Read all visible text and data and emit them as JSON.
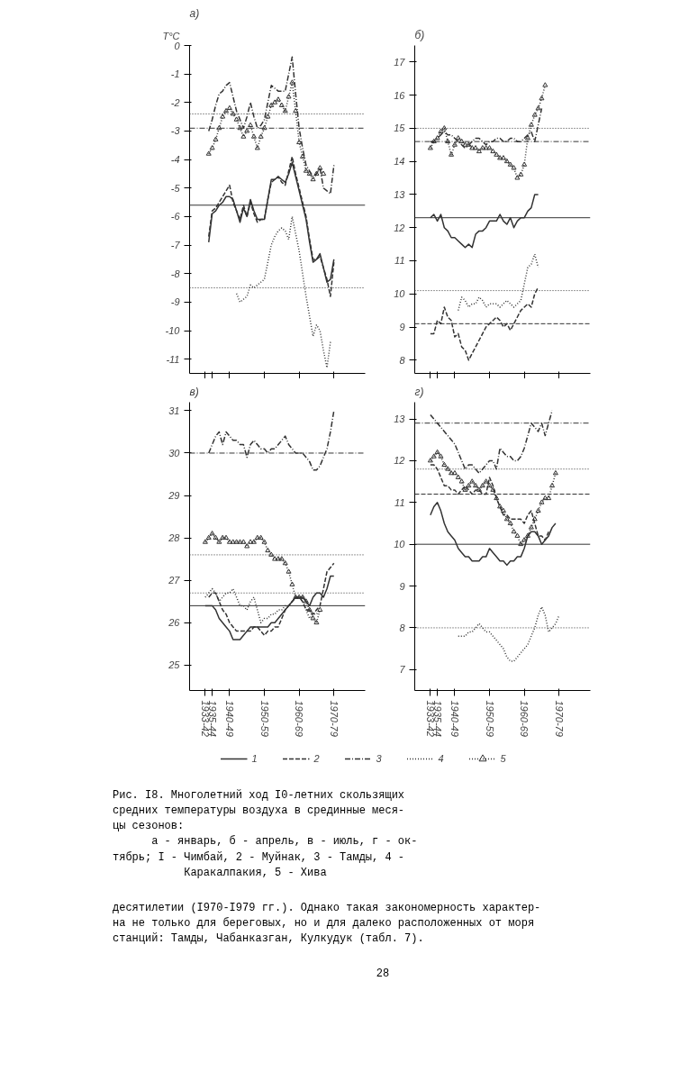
{
  "chart_data": [
    {
      "type": "line",
      "title": "а)",
      "ylabel": "T°C",
      "ylim": [
        -11.5,
        0
      ],
      "yticks": [
        0,
        -1,
        -2,
        -3,
        -4,
        -5,
        -6,
        -7,
        -8,
        -9,
        -10,
        -11
      ],
      "categories": [
        "1933-42",
        null,
        "1935-44",
        null,
        null,
        null,
        null,
        "1940-49",
        null,
        null,
        null,
        null,
        null,
        null,
        null,
        null,
        null,
        "1950-59",
        null,
        null,
        null,
        null,
        null,
        null,
        null,
        null,
        null,
        "1960-69",
        null,
        null,
        null,
        null,
        null,
        null,
        null,
        null,
        null,
        "1970-79"
      ],
      "tick_labels": "y",
      "grid": false,
      "legend": false,
      "series": [
        {
          "color": "#333333",
          "line_style": "solid",
          "values": [
            null,
            -6.9,
            -5.9,
            -5.8,
            -5.6,
            -5.5,
            -5.3,
            -5.3,
            -5.4,
            -5.8,
            -6.2,
            -5.7,
            -6.0,
            -5.4,
            -5.8,
            -6.1,
            -6.1,
            -6.1,
            -5.4,
            -4.7,
            -4.7,
            -4.6,
            -4.7,
            -4.8,
            -4.5,
            -4.1,
            -4.6,
            -5.1,
            -5.6,
            -6.1,
            -6.9,
            -7.6,
            -7.5,
            -7.3,
            -7.8,
            -8.3,
            -8.2,
            -7.5
          ]
        },
        {
          "color": "#333333",
          "line_style": "dashed",
          "values": [
            null,
            -6.7,
            -5.8,
            -5.7,
            -5.5,
            -5.3,
            -5.1,
            -4.9,
            -5.5,
            -5.8,
            -6.1,
            -5.6,
            -6.0,
            -5.5,
            -5.9,
            -6.2,
            -6.1,
            -6.1,
            -5.4,
            -4.8,
            -4.7,
            -4.6,
            -4.8,
            -4.9,
            -4.4,
            -3.9,
            -4.5,
            -5.0,
            -5.5,
            -6.0,
            -6.8,
            -7.5,
            -7.5,
            -7.4,
            -7.8,
            -8.2,
            -8.8,
            -7.6
          ]
        },
        {
          "color": "#333333",
          "line_style": "dashdot",
          "values": [
            null,
            -3.0,
            -2.6,
            -2.1,
            -1.7,
            -1.6,
            -1.4,
            -1.3,
            -1.8,
            -2.3,
            -2.6,
            -2.9,
            -2.5,
            -2.0,
            -2.5,
            -2.9,
            -2.8,
            -2.6,
            -2.0,
            -1.4,
            -1.5,
            -1.6,
            -1.6,
            -1.6,
            -1.0,
            -0.4,
            -1.7,
            -2.9,
            -3.6,
            -4.2,
            -4.4,
            -4.6,
            -4.5,
            -4.3,
            -5.0,
            -5.1,
            -5.2,
            -4.2
          ]
        },
        {
          "color": "#333333",
          "line_style": "dotted",
          "values": [
            null,
            null,
            null,
            null,
            null,
            null,
            null,
            null,
            null,
            -8.7,
            -9.0,
            -8.9,
            -8.8,
            -8.4,
            -8.5,
            -8.4,
            -8.3,
            -8.2,
            -7.6,
            -7.0,
            -6.7,
            -6.5,
            -6.4,
            -6.5,
            -6.8,
            -6.0,
            -6.6,
            -7.2,
            -8.0,
            -8.8,
            -9.5,
            -10.2,
            -9.8,
            -10.0,
            -10.7,
            -11.3,
            -10.4,
            null
          ]
        },
        {
          "color": "#333333",
          "line_style": "dotted",
          "marker": "triangle",
          "values": [
            null,
            -3.8,
            -3.6,
            -3.3,
            -2.9,
            -2.5,
            -2.3,
            -2.2,
            -2.4,
            -2.6,
            -2.9,
            -3.2,
            -3.0,
            -2.8,
            -3.2,
            -3.6,
            -3.2,
            -2.9,
            -2.5,
            -2.1,
            -2.0,
            -1.9,
            -2.1,
            -2.3,
            -1.8,
            -1.3,
            -2.3,
            -3.4,
            -3.9,
            -4.4,
            -4.5,
            -4.7,
            -4.5,
            -4.3,
            -4.5,
            null,
            null,
            null
          ]
        }
      ],
      "ref_lines": [
        {
          "axis": "y",
          "value": -2.4,
          "color": "#333333",
          "line_style": "dotted"
        },
        {
          "axis": "y",
          "value": -2.9,
          "color": "#333333",
          "line_style": "dashdot"
        },
        {
          "axis": "y",
          "value": -5.6,
          "color": "#333333",
          "line_style": "solid"
        },
        {
          "axis": "y",
          "value": -8.5,
          "color": "#333333",
          "line_style": "dotted"
        }
      ]
    },
    {
      "type": "line",
      "title": "б)",
      "ylim": [
        7.6,
        17.5
      ],
      "yticks": [
        8,
        9,
        10,
        11,
        12,
        13,
        14,
        15,
        16,
        17
      ],
      "categories": [
        "1933-42",
        null,
        "1935-44",
        null,
        null,
        null,
        null,
        "1940-49",
        null,
        null,
        null,
        null,
        null,
        null,
        null,
        null,
        null,
        "1950-59",
        null,
        null,
        null,
        null,
        null,
        null,
        null,
        null,
        null,
        "1960-69",
        null,
        null,
        null,
        null,
        null,
        null,
        null,
        null,
        null,
        "1970-79"
      ],
      "tick_labels": "y",
      "grid": false,
      "legend": false,
      "series": [
        {
          "color": "#333333",
          "line_style": "solid",
          "values": [
            12.3,
            12.4,
            12.2,
            12.4,
            12.0,
            11.9,
            11.7,
            11.7,
            11.6,
            11.5,
            11.4,
            11.5,
            11.4,
            11.8,
            11.9,
            11.9,
            12.0,
            12.2,
            12.2,
            12.2,
            12.4,
            12.2,
            12.1,
            12.3,
            12.0,
            12.2,
            12.3,
            12.3,
            12.5,
            12.6,
            13.0,
            13.0,
            null,
            null,
            null,
            null,
            null,
            null
          ]
        },
        {
          "color": "#333333",
          "line_style": "dashed",
          "values": [
            8.8,
            8.8,
            9.2,
            9.1,
            9.6,
            9.3,
            9.2,
            8.7,
            8.8,
            8.4,
            8.3,
            8.0,
            8.2,
            8.4,
            8.6,
            8.8,
            9.0,
            9.1,
            9.2,
            9.3,
            9.2,
            9.0,
            9.1,
            8.9,
            9.1,
            9.3,
            9.5,
            9.6,
            9.7,
            9.6,
            10.0,
            10.2,
            null,
            null,
            null,
            null,
            null,
            null
          ]
        },
        {
          "color": "#333333",
          "line_style": "dashdot",
          "values": [
            14.6,
            14.6,
            14.7,
            14.8,
            14.9,
            14.8,
            14.8,
            14.7,
            14.6,
            14.5,
            14.4,
            14.5,
            14.6,
            14.7,
            14.7,
            14.6,
            14.5,
            14.6,
            14.6,
            14.7,
            14.7,
            14.6,
            14.6,
            14.7,
            14.7,
            14.6,
            14.6,
            14.7,
            14.8,
            14.9,
            14.6,
            15.1,
            15.6,
            null,
            null,
            null,
            null,
            null
          ]
        },
        {
          "color": "#333333",
          "line_style": "dotted",
          "values": [
            null,
            null,
            null,
            null,
            null,
            null,
            null,
            null,
            9.5,
            9.9,
            9.8,
            9.6,
            9.7,
            9.7,
            9.9,
            9.8,
            9.6,
            9.7,
            9.7,
            9.7,
            9.6,
            9.7,
            9.8,
            9.7,
            9.6,
            9.7,
            9.8,
            10.3,
            10.8,
            10.9,
            11.2,
            10.8,
            null,
            null,
            null,
            null,
            null,
            null
          ]
        },
        {
          "color": "#333333",
          "line_style": "dotted",
          "marker": "triangle",
          "values": [
            14.4,
            14.6,
            14.7,
            14.9,
            15.0,
            14.6,
            14.2,
            14.5,
            14.7,
            14.6,
            14.5,
            14.5,
            14.4,
            14.4,
            14.3,
            14.4,
            14.4,
            14.4,
            14.3,
            14.2,
            14.1,
            14.1,
            14.0,
            13.9,
            13.8,
            13.5,
            13.6,
            13.9,
            14.7,
            15.1,
            15.4,
            15.6,
            15.9,
            16.3,
            null,
            null,
            null,
            null
          ]
        }
      ],
      "ref_lines": [
        {
          "axis": "y",
          "value": 15.0,
          "color": "#333333",
          "line_style": "dotted"
        },
        {
          "axis": "y",
          "value": 14.6,
          "color": "#333333",
          "line_style": "dashdot"
        },
        {
          "axis": "y",
          "value": 12.3,
          "color": "#333333",
          "line_style": "solid"
        },
        {
          "axis": "y",
          "value": 10.1,
          "color": "#333333",
          "line_style": "dotted"
        },
        {
          "axis": "y",
          "value": 9.1,
          "color": "#333333",
          "line_style": "dashed"
        }
      ]
    },
    {
      "type": "line",
      "title": "в)",
      "ylim": [
        24.4,
        31.2
      ],
      "yticks": [
        25,
        26,
        27,
        28,
        29,
        30,
        31
      ],
      "categories": [
        "1933-42",
        null,
        "1935-44",
        null,
        null,
        null,
        null,
        "1940-49",
        null,
        null,
        null,
        null,
        null,
        null,
        null,
        null,
        null,
        "1950-59",
        null,
        null,
        null,
        null,
        null,
        null,
        null,
        null,
        null,
        "1960-69",
        null,
        null,
        null,
        null,
        null,
        null,
        null,
        null,
        null,
        "1970-79"
      ],
      "grid": false,
      "legend": "bottom",
      "series": [
        {
          "name": "1",
          "color": "#333333",
          "line_style": "solid",
          "values": [
            26.4,
            26.4,
            26.4,
            26.3,
            26.1,
            26.0,
            25.9,
            25.8,
            25.6,
            25.6,
            25.6,
            25.7,
            25.8,
            25.9,
            25.9,
            25.9,
            25.9,
            25.9,
            25.9,
            26.0,
            26.0,
            26.1,
            26.2,
            26.3,
            26.4,
            26.5,
            26.6,
            26.6,
            26.6,
            26.5,
            26.4,
            26.6,
            26.7,
            26.7,
            26.6,
            26.8,
            27.1,
            27.1
          ]
        },
        {
          "name": "2",
          "color": "#333333",
          "line_style": "dashed",
          "values": [
            null,
            26.6,
            26.7,
            26.7,
            26.5,
            26.3,
            26.2,
            26.0,
            25.9,
            25.8,
            25.8,
            25.8,
            25.8,
            25.8,
            25.9,
            25.9,
            25.8,
            25.7,
            25.8,
            25.8,
            25.9,
            25.9,
            26.1,
            26.3,
            26.4,
            26.5,
            26.6,
            26.6,
            26.5,
            26.3,
            26.3,
            26.2,
            26.3,
            26.4,
            26.8,
            27.2,
            27.3,
            27.4
          ]
        },
        {
          "name": "3",
          "color": "#333333",
          "line_style": "dashdot",
          "values": [
            null,
            30.0,
            30.2,
            30.4,
            30.5,
            30.2,
            30.5,
            30.4,
            30.3,
            30.3,
            30.2,
            30.2,
            29.9,
            30.2,
            30.3,
            30.2,
            30.1,
            30.1,
            30.0,
            30.1,
            30.1,
            30.2,
            30.3,
            30.4,
            30.2,
            30.1,
            30.0,
            30.0,
            30.0,
            29.9,
            29.8,
            29.6,
            29.6,
            29.7,
            29.9,
            30.1,
            30.5,
            31.0
          ]
        },
        {
          "name": "4",
          "color": "#333333",
          "line_style": "dotted",
          "values": [
            26.6,
            26.7,
            26.8,
            26.7,
            26.5,
            26.6,
            26.7,
            26.7,
            26.8,
            26.6,
            26.4,
            26.4,
            26.3,
            26.5,
            26.6,
            26.3,
            26.0,
            26.1,
            26.1,
            26.2,
            26.2,
            26.3,
            26.3,
            26.4,
            26.4,
            26.5,
            26.6,
            26.6,
            26.5,
            26.3,
            26.1,
            26.2,
            26.2,
            26.3,
            null,
            null,
            null,
            null
          ]
        },
        {
          "name": "5",
          "color": "#333333",
          "line_style": "dotted",
          "marker": "triangle",
          "values": [
            27.9,
            28.0,
            28.1,
            28.0,
            27.9,
            28.0,
            28.0,
            27.9,
            27.9,
            27.9,
            27.9,
            27.9,
            27.8,
            27.9,
            27.9,
            28.0,
            28.0,
            27.9,
            27.7,
            27.6,
            27.5,
            27.5,
            27.5,
            27.4,
            27.2,
            26.9,
            26.6,
            26.6,
            26.6,
            26.5,
            26.3,
            26.1,
            26.0,
            26.3,
            null,
            null,
            null,
            null
          ]
        }
      ],
      "ref_lines": [
        {
          "axis": "y",
          "value": 30.0,
          "color": "#333333",
          "line_style": "dashdot"
        },
        {
          "axis": "y",
          "value": 27.6,
          "color": "#333333",
          "line_style": "dotted"
        },
        {
          "axis": "y",
          "value": 26.7,
          "color": "#333333",
          "line_style": "dotted"
        },
        {
          "axis": "y",
          "value": 26.4,
          "color": "#333333",
          "line_style": "solid"
        }
      ]
    },
    {
      "type": "line",
      "title": "г)",
      "ylim": [
        6.5,
        13.4
      ],
      "yticks": [
        7,
        8,
        9,
        10,
        11,
        12,
        13
      ],
      "categories": [
        "1933-42",
        null,
        "1935-44",
        null,
        null,
        null,
        null,
        "1940-49",
        null,
        null,
        null,
        null,
        null,
        null,
        null,
        null,
        null,
        "1950-59",
        null,
        null,
        null,
        null,
        null,
        null,
        null,
        null,
        null,
        "1960-69",
        null,
        null,
        null,
        null,
        null,
        null,
        null,
        null,
        null,
        "1970-79"
      ],
      "grid": false,
      "legend": false,
      "series": [
        {
          "color": "#333333",
          "line_style": "solid",
          "values": [
            10.7,
            10.9,
            11.0,
            10.8,
            10.5,
            10.3,
            10.2,
            10.1,
            9.9,
            9.8,
            9.7,
            9.7,
            9.6,
            9.6,
            9.6,
            9.7,
            9.7,
            9.9,
            9.8,
            9.7,
            9.6,
            9.6,
            9.5,
            9.6,
            9.6,
            9.7,
            9.7,
            9.9,
            10.2,
            10.3,
            10.3,
            10.2,
            10.0,
            10.1,
            10.2,
            10.4,
            10.5,
            null
          ]
        },
        {
          "color": "#333333",
          "line_style": "dashed",
          "values": [
            11.9,
            11.9,
            11.8,
            11.6,
            11.4,
            11.4,
            11.3,
            11.3,
            11.2,
            11.3,
            11.4,
            11.3,
            11.2,
            11.3,
            11.3,
            11.2,
            11.2,
            11.6,
            11.4,
            11.1,
            10.9,
            10.7,
            10.7,
            10.6,
            10.6,
            10.6,
            10.6,
            10.5,
            10.7,
            10.8,
            10.5,
            10.2,
            10.2,
            10.1,
            10.3,
            null,
            null,
            null
          ]
        },
        {
          "color": "#333333",
          "line_style": "dashdot",
          "values": [
            13.1,
            13.0,
            12.9,
            12.8,
            12.7,
            12.6,
            12.5,
            12.4,
            12.2,
            12.0,
            11.8,
            11.9,
            11.9,
            11.8,
            11.7,
            11.8,
            11.9,
            12.0,
            12.0,
            11.8,
            12.3,
            12.2,
            12.1,
            12.1,
            12.0,
            12.0,
            12.1,
            12.3,
            12.6,
            12.9,
            12.8,
            12.7,
            12.9,
            12.6,
            12.9,
            13.2,
            null,
            null
          ]
        },
        {
          "color": "#333333",
          "line_style": "dotted",
          "values": [
            null,
            null,
            null,
            null,
            null,
            null,
            null,
            null,
            7.8,
            7.8,
            7.8,
            7.9,
            7.9,
            8.0,
            8.1,
            8.0,
            7.9,
            7.9,
            7.8,
            7.7,
            7.6,
            7.5,
            7.3,
            7.2,
            7.2,
            7.3,
            7.4,
            7.5,
            7.6,
            7.8,
            8.0,
            8.3,
            8.5,
            8.3,
            7.9,
            8.0,
            8.1,
            8.3
          ]
        },
        {
          "color": "#333333",
          "line_style": "dotted",
          "marker": "triangle",
          "values": [
            12.0,
            12.1,
            12.2,
            12.1,
            11.9,
            11.8,
            11.7,
            11.7,
            11.6,
            11.5,
            11.3,
            11.4,
            11.5,
            11.4,
            11.3,
            11.4,
            11.5,
            11.4,
            11.3,
            11.1,
            10.9,
            10.8,
            10.6,
            10.5,
            10.3,
            10.2,
            10.0,
            10.1,
            10.2,
            10.4,
            10.6,
            10.8,
            11.0,
            11.1,
            11.1,
            11.4,
            11.7,
            null
          ]
        }
      ],
      "ref_lines": [
        {
          "axis": "y",
          "value": 12.9,
          "color": "#333333",
          "line_style": "dashdot"
        },
        {
          "axis": "y",
          "value": 11.8,
          "color": "#333333",
          "line_style": "dotted"
        },
        {
          "axis": "y",
          "value": 11.2,
          "color": "#333333",
          "line_style": "dashed"
        },
        {
          "axis": "y",
          "value": 10.0,
          "color": "#333333",
          "line_style": "solid"
        },
        {
          "axis": "y",
          "value": 8.0,
          "color": "#333333",
          "line_style": "dotted"
        }
      ]
    },
    {
      "type": "other",
      "annotations": [
        "Рис. I8. Многолетний ход I0-летних скользящих\nсредних температуры воздуха в срединные меся-\nцы сезонов:\n      а - январь, б - апрель, в - июль, г - ок-\nтябрь; I - Чимбай, 2 - Муйнак, 3 - Тамды, 4 -\n           Каракалпакия, 5 - Хива",
        "десятилетии (I970-I979 гг.). Однако такая закономерность характер-\nна не только для береговых, но и для далеко расположенных от моря\nстанций: Тамды, Чабанказган, Кулкудук (табл. 7).",
        "28"
      ]
    }
  ]
}
